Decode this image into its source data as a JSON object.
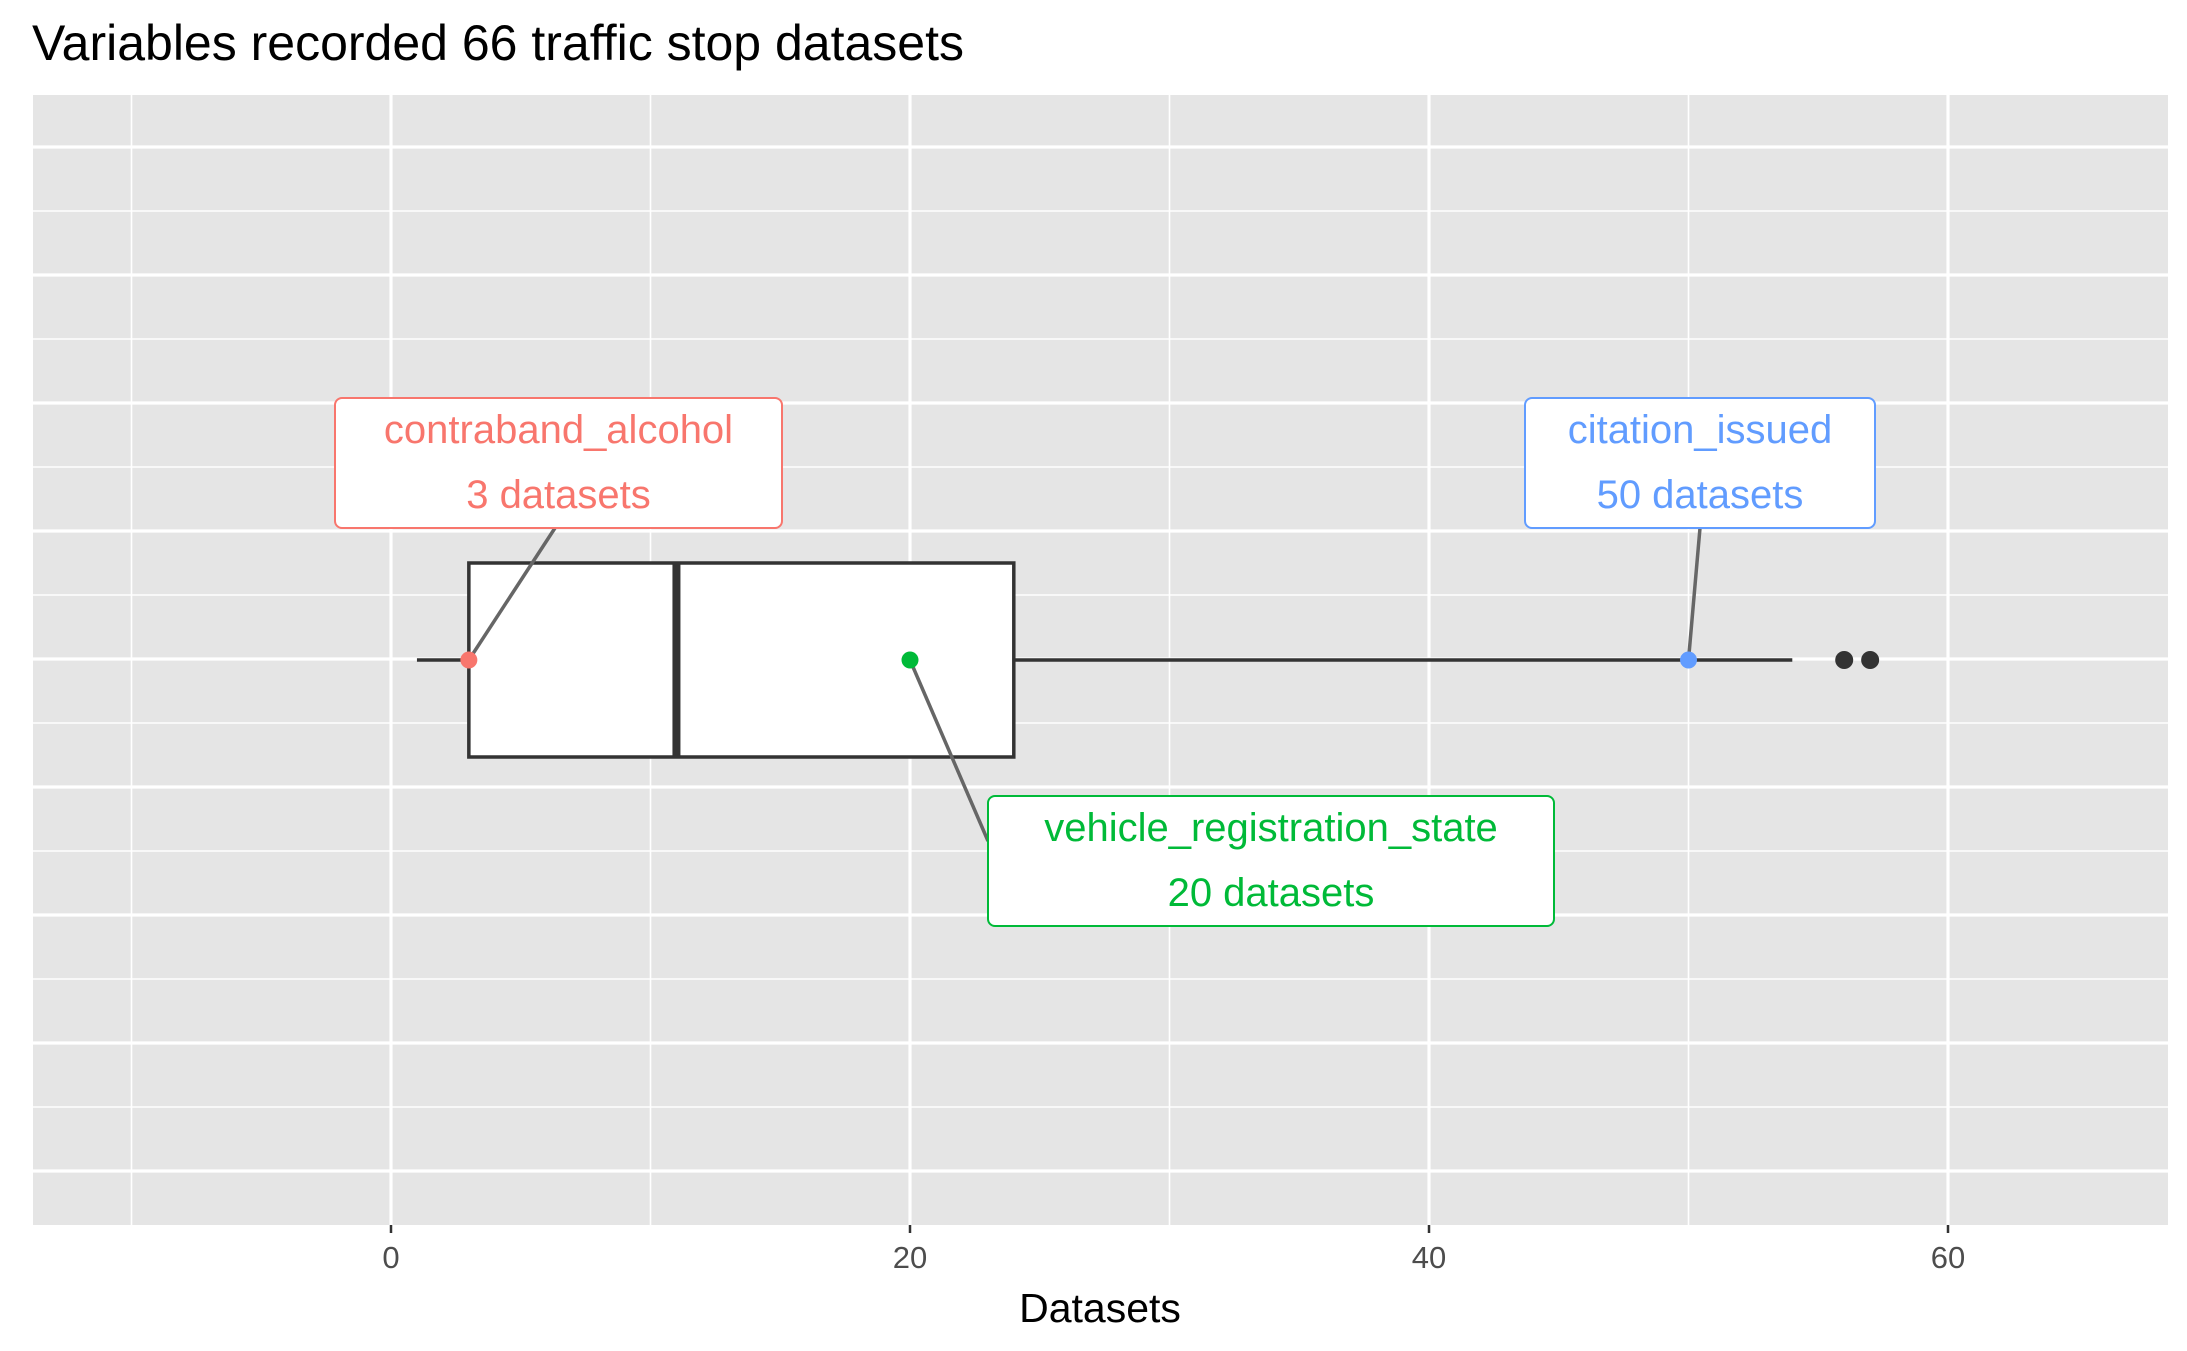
{
  "chart_data": {
    "type": "boxplot",
    "title": "Variables recorded 66 traffic stop datasets",
    "xlabel": "Datasets",
    "ylabel": "",
    "xlim": [
      -14,
      69
    ],
    "x_ticks": [
      0,
      20,
      40,
      60
    ],
    "grid": true,
    "orientation": "horizontal",
    "box": {
      "whisker_low": 1,
      "q1": 3,
      "median": 11,
      "q3": 24,
      "whisker_high": 54,
      "outliers": [
        56,
        57
      ]
    },
    "annotations": [
      {
        "variable": "contraband_alcohol",
        "value": 3,
        "label": "3 datasets",
        "color": "#F8766D",
        "placement": "above-left"
      },
      {
        "variable": "vehicle_registration_state",
        "value": 20,
        "label": "20 datasets",
        "color": "#00BA38",
        "placement": "below-right"
      },
      {
        "variable": "citation_issued",
        "value": 50,
        "label": "50 datasets",
        "color": "#619CFF",
        "placement": "above-right"
      }
    ]
  },
  "colors": {
    "panel_background": "#E5E5E5",
    "grid_line": "#FFFFFF",
    "box_outline": "#333333",
    "connector_line": "#666666"
  }
}
